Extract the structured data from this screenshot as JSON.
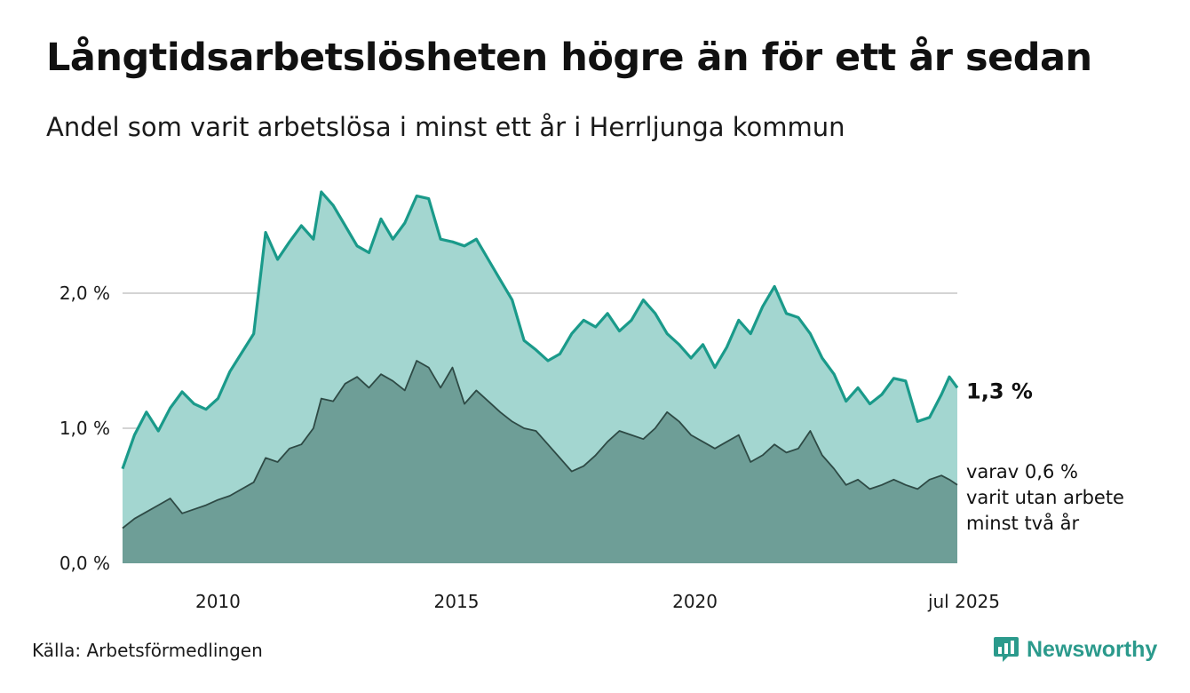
{
  "header": {
    "title": "Långtidsarbetslösheten högre än för ett år sedan",
    "subtitle": "Andel som varit arbetslösa i minst ett år i Herrljunga kommun"
  },
  "footer": {
    "source": "Källa: Arbetsförmedlingen",
    "brand": "Newsworthy"
  },
  "colors": {
    "long_line": "#1a9a8a",
    "long_fill": "#a3d6d0",
    "verylong_line": "#2e4a45",
    "verylong_fill": "#6e9e97",
    "gridline": "#d4d4d4",
    "brand": "#2b9a8c"
  },
  "chart_data": {
    "type": "area",
    "x_start": "2008-01",
    "x_end": "2025-07",
    "ylim": [
      0,
      3
    ],
    "y_ticks": [
      {
        "value": 0,
        "label": "0,0 %"
      },
      {
        "value": 1,
        "label": "1,0 %"
      },
      {
        "value": 2,
        "label": "2,0 %"
      }
    ],
    "x_ticks": [
      {
        "date": "2010-01",
        "label": "2010"
      },
      {
        "date": "2015-01",
        "label": "2015"
      },
      {
        "date": "2020-01",
        "label": "2020"
      },
      {
        "date": "2025-07",
        "label": "jul 2025"
      }
    ],
    "grid": true,
    "end_labels": {
      "main": "1,3 %",
      "sub": [
        "varav 0,6 %",
        "varit utan arbete",
        "minst två år"
      ]
    },
    "series": [
      {
        "key": "long",
        "points": [
          [
            "2008-01",
            0.7
          ],
          [
            "2008-04",
            0.95
          ],
          [
            "2008-07",
            1.12
          ],
          [
            "2008-10",
            0.98
          ],
          [
            "2009-01",
            1.15
          ],
          [
            "2009-04",
            1.27
          ],
          [
            "2009-07",
            1.18
          ],
          [
            "2009-10",
            1.14
          ],
          [
            "2010-01",
            1.22
          ],
          [
            "2010-04",
            1.42
          ],
          [
            "2010-07",
            1.56
          ],
          [
            "2010-10",
            1.7
          ],
          [
            "2011-01",
            2.45
          ],
          [
            "2011-04",
            2.25
          ],
          [
            "2011-07",
            2.38
          ],
          [
            "2011-10",
            2.5
          ],
          [
            "2012-01",
            2.4
          ],
          [
            "2012-03",
            2.75
          ],
          [
            "2012-06",
            2.65
          ],
          [
            "2012-09",
            2.5
          ],
          [
            "2012-12",
            2.35
          ],
          [
            "2013-03",
            2.3
          ],
          [
            "2013-06",
            2.55
          ],
          [
            "2013-09",
            2.4
          ],
          [
            "2013-12",
            2.52
          ],
          [
            "2014-03",
            2.72
          ],
          [
            "2014-06",
            2.7
          ],
          [
            "2014-09",
            2.4
          ],
          [
            "2014-12",
            2.38
          ],
          [
            "2015-03",
            2.35
          ],
          [
            "2015-06",
            2.4
          ],
          [
            "2015-09",
            2.25
          ],
          [
            "2015-12",
            2.1
          ],
          [
            "2016-03",
            1.95
          ],
          [
            "2016-06",
            1.65
          ],
          [
            "2016-09",
            1.58
          ],
          [
            "2016-12",
            1.5
          ],
          [
            "2017-03",
            1.55
          ],
          [
            "2017-06",
            1.7
          ],
          [
            "2017-09",
            1.8
          ],
          [
            "2017-12",
            1.75
          ],
          [
            "2018-03",
            1.85
          ],
          [
            "2018-06",
            1.72
          ],
          [
            "2018-09",
            1.8
          ],
          [
            "2018-12",
            1.95
          ],
          [
            "2019-03",
            1.85
          ],
          [
            "2019-06",
            1.7
          ],
          [
            "2019-09",
            1.62
          ],
          [
            "2019-12",
            1.52
          ],
          [
            "2020-03",
            1.62
          ],
          [
            "2020-06",
            1.45
          ],
          [
            "2020-09",
            1.6
          ],
          [
            "2020-12",
            1.8
          ],
          [
            "2021-03",
            1.7
          ],
          [
            "2021-06",
            1.9
          ],
          [
            "2021-09",
            2.05
          ],
          [
            "2021-12",
            1.85
          ],
          [
            "2022-03",
            1.82
          ],
          [
            "2022-06",
            1.7
          ],
          [
            "2022-09",
            1.52
          ],
          [
            "2022-12",
            1.4
          ],
          [
            "2023-03",
            1.2
          ],
          [
            "2023-06",
            1.3
          ],
          [
            "2023-09",
            1.18
          ],
          [
            "2023-12",
            1.25
          ],
          [
            "2024-03",
            1.37
          ],
          [
            "2024-06",
            1.35
          ],
          [
            "2024-09",
            1.05
          ],
          [
            "2024-12",
            1.08
          ],
          [
            "2025-03",
            1.25
          ],
          [
            "2025-05",
            1.38
          ],
          [
            "2025-07",
            1.3
          ]
        ]
      },
      {
        "key": "verylong",
        "points": [
          [
            "2008-01",
            0.26
          ],
          [
            "2008-04",
            0.33
          ],
          [
            "2008-07",
            0.38
          ],
          [
            "2008-10",
            0.43
          ],
          [
            "2009-01",
            0.48
          ],
          [
            "2009-04",
            0.37
          ],
          [
            "2009-07",
            0.4
          ],
          [
            "2009-10",
            0.43
          ],
          [
            "2010-01",
            0.47
          ],
          [
            "2010-04",
            0.5
          ],
          [
            "2010-07",
            0.55
          ],
          [
            "2010-10",
            0.6
          ],
          [
            "2011-01",
            0.78
          ],
          [
            "2011-04",
            0.75
          ],
          [
            "2011-07",
            0.85
          ],
          [
            "2011-10",
            0.88
          ],
          [
            "2012-01",
            1.0
          ],
          [
            "2012-03",
            1.22
          ],
          [
            "2012-06",
            1.2
          ],
          [
            "2012-09",
            1.33
          ],
          [
            "2012-12",
            1.38
          ],
          [
            "2013-03",
            1.3
          ],
          [
            "2013-06",
            1.4
          ],
          [
            "2013-09",
            1.35
          ],
          [
            "2013-12",
            1.28
          ],
          [
            "2014-03",
            1.5
          ],
          [
            "2014-06",
            1.45
          ],
          [
            "2014-09",
            1.3
          ],
          [
            "2014-12",
            1.45
          ],
          [
            "2015-03",
            1.18
          ],
          [
            "2015-06",
            1.28
          ],
          [
            "2015-09",
            1.2
          ],
          [
            "2015-12",
            1.12
          ],
          [
            "2016-03",
            1.05
          ],
          [
            "2016-06",
            1.0
          ],
          [
            "2016-09",
            0.98
          ],
          [
            "2016-12",
            0.88
          ],
          [
            "2017-03",
            0.78
          ],
          [
            "2017-06",
            0.68
          ],
          [
            "2017-09",
            0.72
          ],
          [
            "2017-12",
            0.8
          ],
          [
            "2018-03",
            0.9
          ],
          [
            "2018-06",
            0.98
          ],
          [
            "2018-09",
            0.95
          ],
          [
            "2018-12",
            0.92
          ],
          [
            "2019-03",
            1.0
          ],
          [
            "2019-06",
            1.12
          ],
          [
            "2019-09",
            1.05
          ],
          [
            "2019-12",
            0.95
          ],
          [
            "2020-03",
            0.9
          ],
          [
            "2020-06",
            0.85
          ],
          [
            "2020-09",
            0.9
          ],
          [
            "2020-12",
            0.95
          ],
          [
            "2021-03",
            0.75
          ],
          [
            "2021-06",
            0.8
          ],
          [
            "2021-09",
            0.88
          ],
          [
            "2021-12",
            0.82
          ],
          [
            "2022-03",
            0.85
          ],
          [
            "2022-06",
            0.98
          ],
          [
            "2022-09",
            0.8
          ],
          [
            "2022-12",
            0.7
          ],
          [
            "2023-03",
            0.58
          ],
          [
            "2023-06",
            0.62
          ],
          [
            "2023-09",
            0.55
          ],
          [
            "2023-12",
            0.58
          ],
          [
            "2024-03",
            0.62
          ],
          [
            "2024-06",
            0.58
          ],
          [
            "2024-09",
            0.55
          ],
          [
            "2024-12",
            0.62
          ],
          [
            "2025-03",
            0.65
          ],
          [
            "2025-05",
            0.62
          ],
          [
            "2025-07",
            0.58
          ]
        ]
      }
    ]
  }
}
